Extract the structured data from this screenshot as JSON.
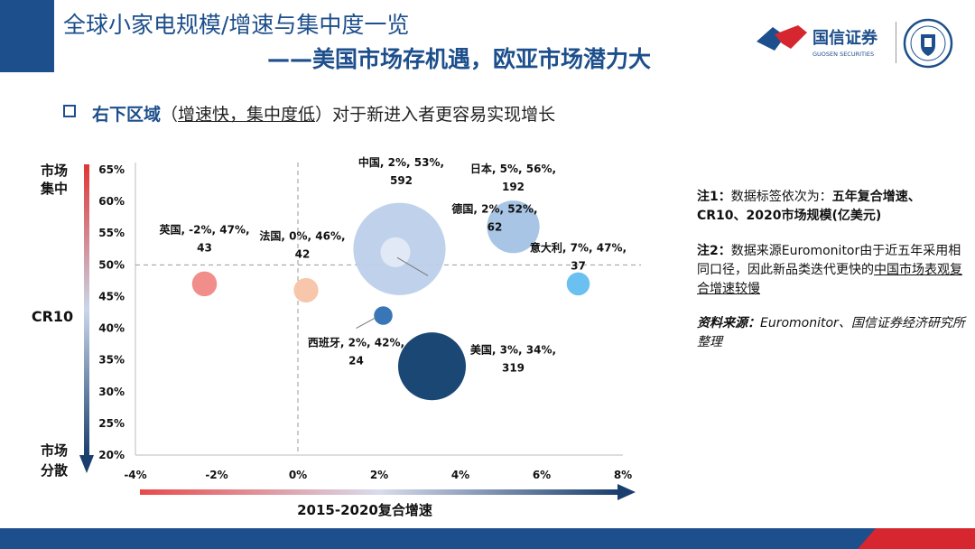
{
  "header": {
    "title_line1": "全球小家电规模/增速与集中度一览",
    "title_line2": "——美国市场存机遇，欧亚市场潜力大"
  },
  "brand": {
    "name": "国信证券",
    "name_en": "GUOSEN SECURITIES"
  },
  "subtitle": {
    "highlight": "右下区域",
    "paren_open": "（",
    "underlined": "增速快，集中度低",
    "paren_close": "）",
    "rest": "对于新进入者更容易实现增长"
  },
  "notes": {
    "note1_label": "注1：",
    "note1_text": "数据标签依次为：",
    "note1_bold": "五年复合增速、CR10、2020市场规模(亿美元)",
    "note2_label": "注2：",
    "note2_text": "数据来源Euromonitor由于近五年采用相同口径，因此新品类迭代更快的",
    "note2_underlined": "中国市场表观复合增速较慢",
    "source_label": "资料来源：",
    "source_text": "Euromonitor、国信证券经济研究所整理"
  },
  "colors": {
    "brand_blue": "#1d4f8c",
    "brand_red": "#d6262f"
  },
  "chart_data": {
    "type": "scatter",
    "subtype": "bubble",
    "xlabel": "2015-2020复合增速",
    "ylabel": "CR10",
    "y_top_label": "市场集中",
    "y_bottom_label": "市场分散",
    "xlim": [
      -4,
      8
    ],
    "ylim": [
      20,
      65
    ],
    "x_ticks": [
      -4,
      -2,
      0,
      2,
      4,
      6,
      8
    ],
    "x_tick_labels": [
      "-4%",
      "-2%",
      "0%",
      "2%",
      "4%",
      "6%",
      "8%"
    ],
    "y_ticks": [
      20,
      25,
      30,
      35,
      40,
      45,
      50,
      55,
      60,
      65
    ],
    "y_tick_labels": [
      "20%",
      "25%",
      "30%",
      "35%",
      "40%",
      "45%",
      "50%",
      "55%",
      "60%",
      "65%"
    ],
    "reference_lines": {
      "x": 0,
      "y": 50
    },
    "points": [
      {
        "name": "中国",
        "x": 2.5,
        "y": 52.5,
        "size": 592,
        "color": "#bdd0ea",
        "label_line1": "中国, 2%, 53%,",
        "label_line2": "592"
      },
      {
        "name": "日本",
        "x": 5.3,
        "y": 56,
        "size": 192,
        "color": "#a3c2e4",
        "label_line1": "日本, 5%, 56%,",
        "label_line2": "192"
      },
      {
        "name": "英国",
        "x": -2.3,
        "y": 47,
        "size": 43,
        "color": "#f08784",
        "label_line1": "英国, -2%, 47%,",
        "label_line2": "43"
      },
      {
        "name": "法国",
        "x": 0.2,
        "y": 46,
        "size": 42,
        "color": "#f7c3a6",
        "label_line1": "法国, 0%, 46%,",
        "label_line2": "42"
      },
      {
        "name": "德国",
        "x": 2.4,
        "y": 52,
        "size": 62,
        "color": "#e1eaf6",
        "label_line1": "德国, 2%, 52%,",
        "label_line2": "62"
      },
      {
        "name": "意大利",
        "x": 6.9,
        "y": 47,
        "size": 37,
        "color": "#62bdf0",
        "label_line1": "意大利, 7%, 47%,",
        "label_line2": "37"
      },
      {
        "name": "西班牙",
        "x": 2.1,
        "y": 42,
        "size": 24,
        "color": "#2e6fb3",
        "label_line1": "西班牙, 2%, 42%,",
        "label_line2": "24"
      },
      {
        "name": "美国",
        "x": 3.3,
        "y": 34,
        "size": 319,
        "color": "#0f3d6e",
        "label_line1": "美国, 3%, 34%,",
        "label_line2": "319"
      }
    ]
  }
}
